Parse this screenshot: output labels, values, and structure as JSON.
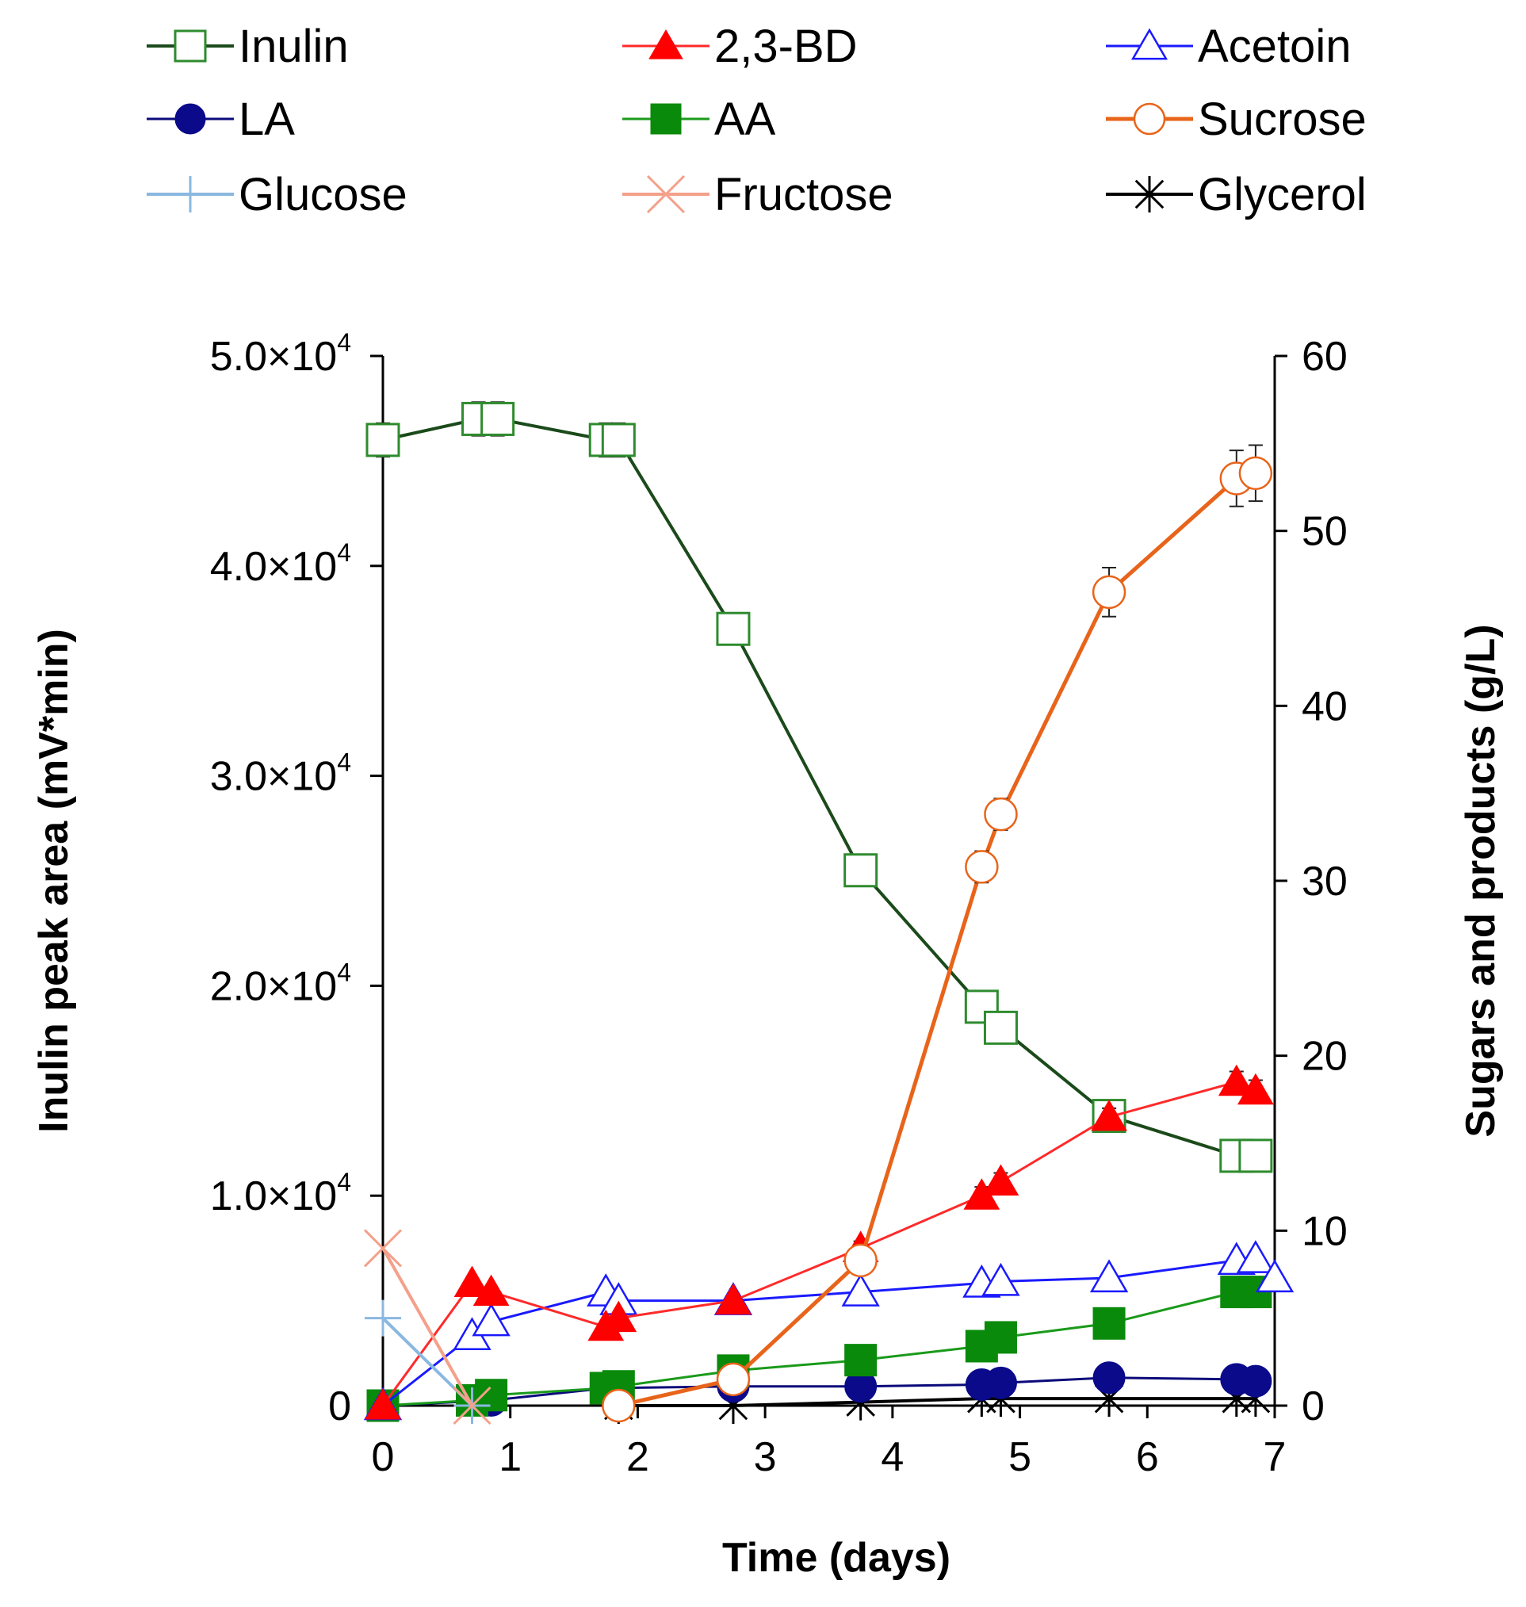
{
  "chart_data": {
    "type": "line",
    "title": "",
    "xlabel": "Time (days)",
    "ylabel_left": "Inulin peak area (mV*min)",
    "ylabel_right": "Sugars and products (g/L)",
    "xlim": [
      0,
      7
    ],
    "ylim_left": [
      0,
      50000
    ],
    "ylim_right": [
      0,
      60
    ],
    "x_ticks": [
      "0",
      "1",
      "2",
      "3",
      "4",
      "5",
      "6",
      "7"
    ],
    "y_left_ticks": [
      {
        "value": 0,
        "mant": "0",
        "exp": ""
      },
      {
        "value": 10000,
        "mant": "1.0×10",
        "exp": "4"
      },
      {
        "value": 20000,
        "mant": "2.0×10",
        "exp": "4"
      },
      {
        "value": 30000,
        "mant": "3.0×10",
        "exp": "4"
      },
      {
        "value": 40000,
        "mant": "4.0×10",
        "exp": "4"
      },
      {
        "value": 50000,
        "mant": "5.0×10",
        "exp": "4"
      }
    ],
    "y_right_ticks": [
      "0",
      "10",
      "20",
      "30",
      "40",
      "50",
      "60"
    ],
    "legend_position": "top",
    "series": [
      {
        "name": "Inulin",
        "axis": "left",
        "color": "#1b4a1b",
        "marker_color": "#2e8b2e",
        "marker": "square-open",
        "line_width": 4,
        "x": [
          0,
          0.75,
          0.9,
          1.75,
          1.85,
          2.75,
          3.75,
          4.7,
          4.85,
          5.7,
          6.7,
          6.85
        ],
        "y": [
          46000,
          47000,
          47000,
          46000,
          46000,
          37000,
          25500,
          19000,
          18000,
          13800,
          11900,
          11900
        ],
        "err": [
          800,
          800,
          800,
          800,
          800,
          700,
          500,
          600,
          600,
          500,
          500,
          500
        ]
      },
      {
        "name": "2,3-BD",
        "axis": "right",
        "color": "#ff2a2a",
        "marker_color": "#ff0000",
        "marker": "triangle-filled",
        "line_width": 3,
        "x": [
          0,
          0.7,
          0.85,
          1.75,
          1.85,
          2.75,
          3.75,
          4.7,
          4.85,
          5.7,
          6.7,
          6.85
        ],
        "y": [
          0,
          7,
          6.5,
          4.5,
          5,
          6,
          9,
          12,
          12.8,
          16.5,
          18.5,
          18
        ],
        "err": [
          0,
          0,
          0,
          0,
          0,
          0,
          0.4,
          0.5,
          0.5,
          0.5,
          0.6,
          0.6
        ]
      },
      {
        "name": "Acetoin",
        "axis": "right",
        "color": "#1a1aff",
        "marker_color": "#1a1aff",
        "marker": "triangle-open",
        "line_width": 3,
        "x": [
          0,
          0.7,
          0.85,
          1.75,
          1.85,
          2.75,
          3.75,
          4.7,
          4.85,
          5.7,
          6.7,
          6.85,
          7.0
        ],
        "y": [
          0,
          4,
          4.8,
          6.5,
          6,
          6,
          6.5,
          7,
          7.1,
          7.3,
          8.3,
          8.4,
          7.3
        ],
        "err": [
          0,
          0,
          0,
          0,
          0,
          0,
          0.3,
          0.3,
          0.3,
          0.3,
          0.3,
          0.3,
          0
        ]
      },
      {
        "name": "LA",
        "axis": "right",
        "color": "#0a0a7a",
        "marker_color": "#0a0a8a",
        "marker": "circle-filled",
        "line_width": 3,
        "x": [
          0,
          0.85,
          1.75,
          2.75,
          3.75,
          4.7,
          4.85,
          5.7,
          6.7,
          6.85
        ],
        "y": [
          0,
          0.3,
          1,
          1.1,
          1.1,
          1.2,
          1.3,
          1.6,
          1.5,
          1.4
        ],
        "err": []
      },
      {
        "name": "AA",
        "axis": "right",
        "color": "#1a9a1a",
        "marker_color": "#0a8a0a",
        "marker": "square-filled",
        "line_width": 3,
        "x": [
          0,
          0.7,
          0.85,
          1.75,
          1.85,
          2.75,
          3.75,
          4.7,
          4.85,
          5.7,
          6.7,
          6.85
        ],
        "y": [
          0,
          0.3,
          0.6,
          1,
          1.1,
          2,
          2.6,
          3.4,
          3.9,
          4.7,
          6.5,
          6.5
        ],
        "err": []
      },
      {
        "name": "Sucrose",
        "axis": "right",
        "color": "#e8641a",
        "marker_color": "#e8641a",
        "marker": "circle-open",
        "line_width": 5,
        "x": [
          1.85,
          2.75,
          3.75,
          4.7,
          4.85,
          5.7,
          6.7,
          6.85
        ],
        "y": [
          0,
          1.5,
          8.3,
          30.8,
          33.8,
          46.5,
          53,
          53.3
        ],
        "err": [
          0,
          0,
          0,
          0.9,
          0.9,
          1.4,
          1.6,
          1.6
        ]
      },
      {
        "name": "Glucose",
        "axis": "right",
        "color": "#8ab8e0",
        "marker_color": "#8ab8e0",
        "marker": "plus",
        "line_width": 4,
        "x": [
          0,
          0.7
        ],
        "y": [
          5,
          0
        ],
        "err": []
      },
      {
        "name": "Fructose",
        "axis": "right",
        "color": "#f4a08a",
        "marker_color": "#f4a08a",
        "marker": "x",
        "line_width": 4,
        "x": [
          0,
          0.7
        ],
        "y": [
          9,
          0
        ],
        "err": []
      },
      {
        "name": "Glycerol",
        "axis": "right",
        "color": "#000000",
        "marker_color": "#000000",
        "marker": "star",
        "line_width": 4,
        "x": [
          1.85,
          2.75,
          3.75,
          4.7,
          4.85,
          5.7,
          6.7,
          6.85
        ],
        "y": [
          0,
          0,
          0.2,
          0.4,
          0.4,
          0.4,
          0.4,
          0.4
        ],
        "err": []
      }
    ]
  }
}
